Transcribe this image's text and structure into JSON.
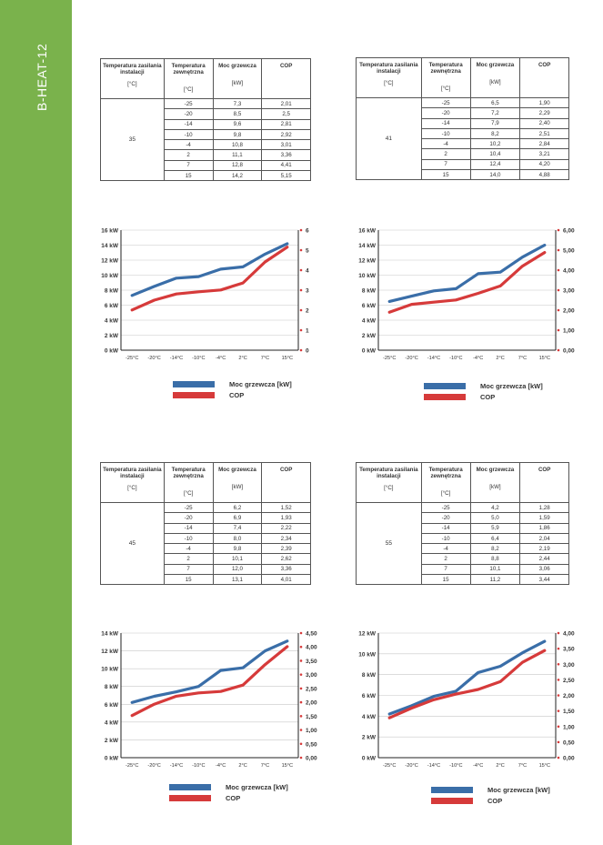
{
  "sidebar": {
    "title": "B-HEAT-12"
  },
  "colors": {
    "sidebar": "#7ab24c",
    "power": "#3a6ea8",
    "cop": "#d63a3a"
  },
  "table_headers": {
    "supply": "Temperatura zasilania instalacji",
    "outdoor": "Temperatura zewnętrzna",
    "power": "Moc grzewcza",
    "cop": "COP",
    "unit_c": "[°C]",
    "unit_kw": "[kW]"
  },
  "legend": {
    "power": "Moc grzewcza [kW]",
    "cop": "COP"
  },
  "tables": [
    {
      "supply_temp": "35",
      "rows": [
        [
          "-25",
          "7,3",
          "2,01"
        ],
        [
          "-20",
          "8,5",
          "2,5"
        ],
        [
          "-14",
          "9,6",
          "2,81"
        ],
        [
          "-10",
          "9,8",
          "2,92"
        ],
        [
          "-4",
          "10,8",
          "3,01"
        ],
        [
          "2",
          "11,1",
          "3,36"
        ],
        [
          "7",
          "12,8",
          "4,41"
        ],
        [
          "15",
          "14,2",
          "5,15"
        ]
      ]
    },
    {
      "supply_temp": "41",
      "rows": [
        [
          "-25",
          "6,5",
          "1,90"
        ],
        [
          "-20",
          "7,2",
          "2,29"
        ],
        [
          "-14",
          "7,9",
          "2,40"
        ],
        [
          "-10",
          "8,2",
          "2,51"
        ],
        [
          "-4",
          "10,2",
          "2,84"
        ],
        [
          "2",
          "10,4",
          "3,21"
        ],
        [
          "7",
          "12,4",
          "4,20"
        ],
        [
          "15",
          "14,0",
          "4,88"
        ]
      ]
    },
    {
      "supply_temp": "45",
      "rows": [
        [
          "-25",
          "6,2",
          "1,52"
        ],
        [
          "-20",
          "6,9",
          "1,93"
        ],
        [
          "-14",
          "7,4",
          "2,22"
        ],
        [
          "-10",
          "8,0",
          "2,34"
        ],
        [
          "-4",
          "9,8",
          "2,39"
        ],
        [
          "2",
          "10,1",
          "2,62"
        ],
        [
          "7",
          "12,0",
          "3,36"
        ],
        [
          "15",
          "13,1",
          "4,01"
        ]
      ]
    },
    {
      "supply_temp": "55",
      "rows": [
        [
          "-25",
          "4,2",
          "1,28"
        ],
        [
          "-20",
          "5,0",
          "1,59"
        ],
        [
          "-14",
          "5,9",
          "1,86"
        ],
        [
          "-10",
          "6,4",
          "2,04"
        ],
        [
          "-4",
          "8,2",
          "2,19"
        ],
        [
          "2",
          "8,8",
          "2,44"
        ],
        [
          "7",
          "10,1",
          "3,06"
        ],
        [
          "15",
          "11,2",
          "3,44"
        ]
      ]
    }
  ],
  "chart_data": [
    {
      "type": "line",
      "categories": [
        "-25°C",
        "-20°C",
        "-14°C",
        "-10°C",
        "-4°C",
        "2°C",
        "7°C",
        "15°C"
      ],
      "series": [
        {
          "name": "Moc grzewcza [kW]",
          "axis": "left",
          "values": [
            7.3,
            8.5,
            9.6,
            9.8,
            10.8,
            11.1,
            12.8,
            14.2
          ]
        },
        {
          "name": "COP",
          "axis": "right",
          "values": [
            2.01,
            2.5,
            2.81,
            2.92,
            3.01,
            3.36,
            4.41,
            5.15
          ]
        }
      ],
      "left_ticks": [
        "0 kW",
        "2 kW",
        "4 kW",
        "6 kW",
        "8 kW",
        "10 kW",
        "12 kW",
        "14 kW",
        "16 kW"
      ],
      "right_ticks": [
        "0",
        "1",
        "2",
        "3",
        "4",
        "5",
        "6"
      ],
      "ylim_left": [
        0,
        16
      ],
      "ylim_right": [
        0,
        6
      ],
      "grid": true,
      "legend": "bottom"
    },
    {
      "type": "line",
      "categories": [
        "-25°C",
        "-20°C",
        "-14°C",
        "-10°C",
        "-4°C",
        "2°C",
        "7°C",
        "15°C"
      ],
      "series": [
        {
          "name": "Moc grzewcza [kW]",
          "axis": "left",
          "values": [
            6.5,
            7.2,
            7.9,
            8.2,
            10.2,
            10.4,
            12.4,
            14.0
          ]
        },
        {
          "name": "COP",
          "axis": "right",
          "values": [
            1.9,
            2.29,
            2.4,
            2.51,
            2.84,
            3.21,
            4.2,
            4.88
          ]
        }
      ],
      "left_ticks": [
        "0 kW",
        "2 kW",
        "4 kW",
        "6 kW",
        "8 kW",
        "10 kW",
        "12 kW",
        "14 kW",
        "16 kW"
      ],
      "right_ticks": [
        "0,00",
        "1,00",
        "2,00",
        "3,00",
        "4,00",
        "5,00",
        "6,00"
      ],
      "ylim_left": [
        0,
        16
      ],
      "ylim_right": [
        0,
        6
      ],
      "grid": true,
      "legend": "bottom"
    },
    {
      "type": "line",
      "categories": [
        "-25°C",
        "-20°C",
        "-14°C",
        "-10°C",
        "-4°C",
        "2°C",
        "7°C",
        "15°C"
      ],
      "series": [
        {
          "name": "Moc grzewcza [kW]",
          "axis": "left",
          "values": [
            6.2,
            6.9,
            7.4,
            8.0,
            9.8,
            10.1,
            12.0,
            13.1
          ]
        },
        {
          "name": "COP",
          "axis": "right",
          "values": [
            1.52,
            1.93,
            2.22,
            2.34,
            2.39,
            2.62,
            3.36,
            4.01
          ]
        }
      ],
      "left_ticks": [
        "0 kW",
        "2 kW",
        "4 kW",
        "6 kW",
        "8 kW",
        "10 kW",
        "12 kW",
        "14 kW"
      ],
      "right_ticks": [
        "0,00",
        "0,50",
        "1,00",
        "1,50",
        "2,00",
        "2,50",
        "3,00",
        "3,50",
        "4,00",
        "4,50"
      ],
      "ylim_left": [
        0,
        14
      ],
      "ylim_right": [
        0,
        4.5
      ],
      "grid": true,
      "legend": "bottom"
    },
    {
      "type": "line",
      "categories": [
        "-25°C",
        "-20°C",
        "-14°C",
        "-10°C",
        "-4°C",
        "2°C",
        "7°C",
        "15°C"
      ],
      "series": [
        {
          "name": "Moc grzewcza [kW]",
          "axis": "left",
          "values": [
            4.2,
            5.0,
            5.9,
            6.4,
            8.2,
            8.8,
            10.1,
            11.2
          ]
        },
        {
          "name": "COP",
          "axis": "right",
          "values": [
            1.28,
            1.59,
            1.86,
            2.04,
            2.19,
            2.44,
            3.06,
            3.44
          ]
        }
      ],
      "left_ticks": [
        "0 kW",
        "2 kW",
        "4 kW",
        "6 kW",
        "8 kW",
        "10 kW",
        "12 kW"
      ],
      "right_ticks": [
        "0,00",
        "0,50",
        "1,00",
        "1,50",
        "2,00",
        "2,50",
        "3,00",
        "3,50",
        "4,00"
      ],
      "ylim_left": [
        0,
        12
      ],
      "ylim_right": [
        0,
        4
      ],
      "grid": true,
      "legend": "bottom"
    }
  ]
}
